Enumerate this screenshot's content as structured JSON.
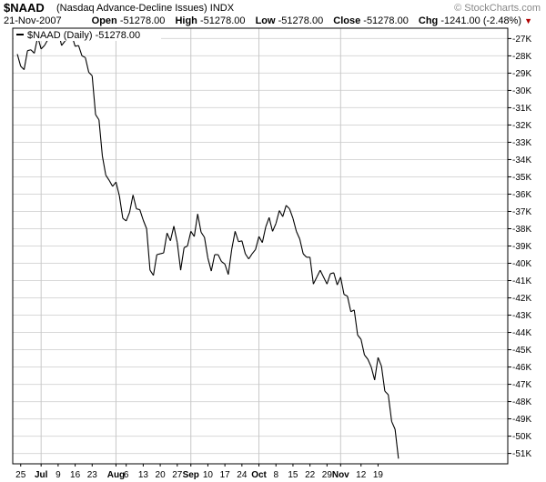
{
  "header": {
    "symbol": "$NAAD",
    "description": "(Nasdaq Advance-Decline Issues)",
    "exchange": "INDX",
    "watermark": "© StockCharts.com",
    "date": "21-Nov-2007",
    "open_label": "Open",
    "open_value": "-51278.00",
    "high_label": "High",
    "high_value": "-51278.00",
    "low_label": "Low",
    "low_value": "-51278.00",
    "close_label": "Close",
    "close_value": "-51278.00",
    "chg_label": "Chg",
    "chg_value": "-1241.00 (-2.48%)",
    "chg_arrow": "▼"
  },
  "chart_data": {
    "type": "line",
    "legend": "$NAAD (Daily) -51278.00",
    "ylim": [
      -51600,
      -26400
    ],
    "yticks": [
      "-27K",
      "-28K",
      "-29K",
      "-30K",
      "-31K",
      "-32K",
      "-33K",
      "-34K",
      "-35K",
      "-36K",
      "-37K",
      "-38K",
      "-39K",
      "-40K",
      "-41K",
      "-42K",
      "-43K",
      "-44K",
      "-45K",
      "-46K",
      "-47K",
      "-48K",
      "-49K",
      "-50K",
      "-51K"
    ],
    "ytick_values": [
      -27000,
      -28000,
      -29000,
      -30000,
      -31000,
      -32000,
      -33000,
      -34000,
      -35000,
      -36000,
      -37000,
      -38000,
      -39000,
      -40000,
      -41000,
      -42000,
      -43000,
      -44000,
      -45000,
      -46000,
      -47000,
      -48000,
      -49000,
      -50000,
      -51000
    ],
    "xticks": [
      {
        "label": "25",
        "index": 1,
        "grid": false
      },
      {
        "label": "Jul",
        "index": 7,
        "grid": true,
        "bold": true
      },
      {
        "label": "9",
        "index": 12,
        "grid": false
      },
      {
        "label": "16",
        "index": 17,
        "grid": false
      },
      {
        "label": "23",
        "index": 22,
        "grid": false
      },
      {
        "label": "Aug",
        "index": 29,
        "grid": true,
        "bold": true
      },
      {
        "label": "6",
        "index": 32,
        "grid": false
      },
      {
        "label": "13",
        "index": 37,
        "grid": false
      },
      {
        "label": "20",
        "index": 42,
        "grid": false
      },
      {
        "label": "27",
        "index": 47,
        "grid": false
      },
      {
        "label": "Sep",
        "index": 51,
        "grid": true,
        "bold": true
      },
      {
        "label": "10",
        "index": 56,
        "grid": false
      },
      {
        "label": "17",
        "index": 61,
        "grid": false
      },
      {
        "label": "24",
        "index": 66,
        "grid": false
      },
      {
        "label": "Oct",
        "index": 71,
        "grid": true,
        "bold": true
      },
      {
        "label": "8",
        "index": 76,
        "grid": false
      },
      {
        "label": "15",
        "index": 81,
        "grid": false
      },
      {
        "label": "22",
        "index": 86,
        "grid": false
      },
      {
        "label": "29",
        "index": 91,
        "grid": false
      },
      {
        "label": "Nov",
        "index": 95,
        "grid": true,
        "bold": true
      },
      {
        "label": "12",
        "index": 101,
        "grid": false
      },
      {
        "label": "19",
        "index": 106,
        "grid": false
      }
    ],
    "series": [
      {
        "name": "$NAAD (Daily)",
        "color": "#000000",
        "values": [
          -27900,
          -28600,
          -28800,
          -27700,
          -27650,
          -27850,
          -26900,
          -27600,
          -27400,
          -27050,
          -26600,
          -26850,
          -26500,
          -27400,
          -27150,
          -26900,
          -26800,
          -27450,
          -27400,
          -28000,
          -28100,
          -28950,
          -29150,
          -31400,
          -31700,
          -33800,
          -34900,
          -35200,
          -35550,
          -35300,
          -36100,
          -37400,
          -37550,
          -37050,
          -36050,
          -36850,
          -36900,
          -37500,
          -38000,
          -40400,
          -40700,
          -39500,
          -39450,
          -39400,
          -38250,
          -38700,
          -37850,
          -38800,
          -40400,
          -39100,
          -39000,
          -38150,
          -38450,
          -37150,
          -38200,
          -38500,
          -39700,
          -40450,
          -39500,
          -39500,
          -39900,
          -40050,
          -40650,
          -39200,
          -38150,
          -38750,
          -38700,
          -39450,
          -39750,
          -39450,
          -39200,
          -38450,
          -38800,
          -37900,
          -37350,
          -38150,
          -37700,
          -36950,
          -37300,
          -36650,
          -36850,
          -37400,
          -38150,
          -38600,
          -39450,
          -39650,
          -39650,
          -41200,
          -40800,
          -40400,
          -40800,
          -41200,
          -40600,
          -40550,
          -41250,
          -40800,
          -41800,
          -41900,
          -42800,
          -42700,
          -44150,
          -44400,
          -45300,
          -45550,
          -46000,
          -46750,
          -45450,
          -45950,
          -47400,
          -47600,
          -49150,
          -49600,
          -51300
        ]
      }
    ]
  }
}
